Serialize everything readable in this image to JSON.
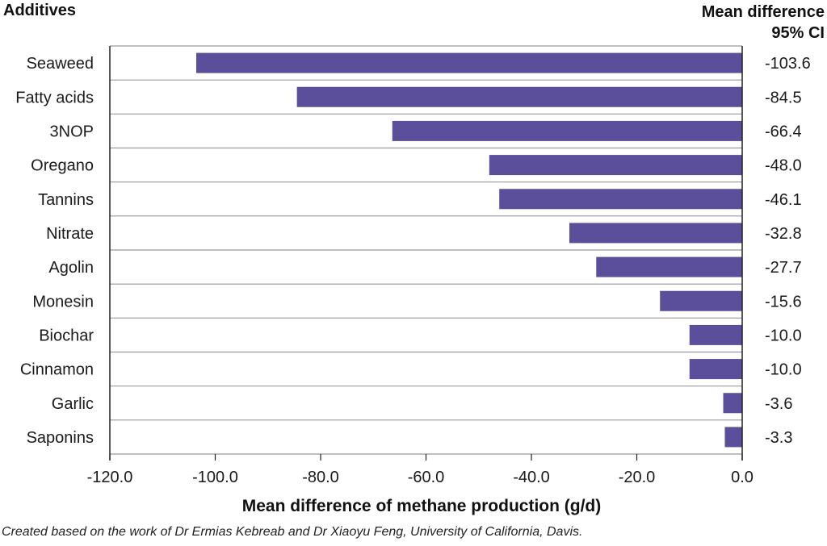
{
  "header": {
    "left_title": "Additives",
    "right_title_line1": "Mean difference",
    "right_title_line2": "95% CI"
  },
  "caption": "Created based on the work of Dr Ermias Kebreab and Dr Xiaoyu Feng, University of California, Davis.",
  "colors": {
    "bar": "#5b4f9c",
    "grid": "#999999",
    "axis": "#222222"
  },
  "chart_data": {
    "type": "bar",
    "orientation": "horizontal",
    "categories": [
      "Seaweed",
      "Fatty acids",
      "3NOP",
      "Oregano",
      "Tannins",
      "Nitrate",
      "Agolin",
      "Monesin",
      "Biochar",
      "Cinnamon",
      "Garlic",
      "Saponins"
    ],
    "values": [
      -103.6,
      -84.5,
      -66.4,
      -48.0,
      -46.1,
      -32.8,
      -27.7,
      -15.6,
      -10.0,
      -10.0,
      -3.6,
      -3.3
    ],
    "value_labels": [
      "-103.6",
      "-84.5",
      "-66.4",
      "-48.0",
      "-46.1",
      "-32.8",
      "-27.7",
      "-15.6",
      "-10.0",
      "-10.0",
      "-3.6",
      "-3.3"
    ],
    "xlabel": "Mean difference of methane production (g/d)",
    "ylabel": "",
    "xlim": [
      -120,
      0
    ],
    "x_ticks": [
      -120,
      -100,
      -80,
      -60,
      -40,
      -20,
      0
    ],
    "x_tick_labels": [
      "-120.0",
      "-100.0",
      "-80.0",
      "-60.0",
      "-40.0",
      "-20.0",
      "0.0"
    ],
    "grid": "horizontal row separators"
  }
}
